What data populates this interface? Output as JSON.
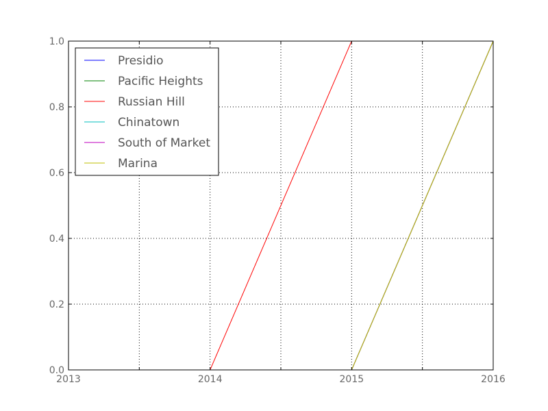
{
  "chart_data": {
    "type": "line",
    "title": "",
    "xlabel": "",
    "ylabel": "",
    "x": [
      2013,
      2014,
      2015,
      2016
    ],
    "xlim": [
      2013,
      2016
    ],
    "ylim": [
      0.0,
      1.0
    ],
    "x_ticks": [
      2013,
      2014,
      2015,
      2016
    ],
    "x_tick_labels": [
      "2013",
      "2014",
      "2015",
      "2016"
    ],
    "y_ticks": [
      0.0,
      0.2,
      0.4,
      0.6,
      0.8,
      1.0
    ],
    "y_tick_labels": [
      "0.0",
      "0.2",
      "0.4",
      "0.6",
      "0.8",
      "1.0"
    ],
    "grid": true,
    "legend_position": "top-left",
    "series": [
      {
        "name": "Presidio",
        "color": "#0000ff",
        "values": [
          0,
          0,
          0,
          1
        ]
      },
      {
        "name": "Pacific Heights",
        "color": "#008000",
        "values": [
          0,
          0,
          0,
          1
        ]
      },
      {
        "name": "Russian Hill",
        "color": "#ff0000",
        "values": [
          0,
          0,
          1,
          null
        ]
      },
      {
        "name": "Chinatown",
        "color": "#00bfbf",
        "values": [
          0,
          0,
          0,
          1
        ]
      },
      {
        "name": "South of Market",
        "color": "#bf00bf",
        "values": [
          0,
          0,
          0,
          1
        ]
      },
      {
        "name": "Marina",
        "color": "#bfbf00",
        "values": [
          0,
          0,
          0,
          1
        ]
      }
    ]
  }
}
